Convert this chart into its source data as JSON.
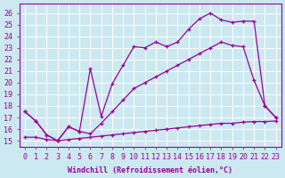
{
  "bg_color": "#cce8f0",
  "line_color": "#990099",
  "grid_color": "#ffffff",
  "xlabel": "Windchill (Refroidissement éolien,°C)",
  "ylabel_ticks": [
    15,
    16,
    17,
    18,
    19,
    20,
    21,
    22,
    23,
    24,
    25,
    26
  ],
  "xlim": [
    -0.5,
    23.5
  ],
  "ylim": [
    14.5,
    26.8
  ],
  "line1_x": [
    0,
    1,
    2,
    3,
    4,
    5,
    6,
    7,
    8,
    9,
    10,
    11,
    12,
    13,
    14,
    15,
    16,
    17,
    18,
    19,
    20,
    21,
    22,
    23
  ],
  "line1_y": [
    15.3,
    15.3,
    15.1,
    15.0,
    15.1,
    15.2,
    15.3,
    15.4,
    15.5,
    15.6,
    15.7,
    15.8,
    15.9,
    16.0,
    16.1,
    16.2,
    16.3,
    16.4,
    16.5,
    16.5,
    16.6,
    16.65,
    16.65,
    16.7
  ],
  "line2_x": [
    0,
    1,
    2,
    3,
    4,
    5,
    6,
    7,
    8,
    9,
    10,
    11,
    12,
    13,
    14,
    15,
    16,
    17,
    18,
    19,
    20,
    21,
    22,
    23
  ],
  "line2_y": [
    17.5,
    16.7,
    15.5,
    15.0,
    16.2,
    15.8,
    15.6,
    16.5,
    17.5,
    18.5,
    19.5,
    20.0,
    20.5,
    21.0,
    21.5,
    22.0,
    22.5,
    23.0,
    23.5,
    23.2,
    23.1,
    20.2,
    18.0,
    17.0
  ],
  "line3_x": [
    0,
    1,
    2,
    3,
    4,
    5,
    6,
    7,
    8,
    9,
    10,
    11,
    12,
    13,
    14,
    15,
    16,
    17,
    18,
    19,
    20,
    21,
    22,
    23
  ],
  "line3_y": [
    17.5,
    16.7,
    15.5,
    15.0,
    16.2,
    15.8,
    21.2,
    17.1,
    19.9,
    21.5,
    23.1,
    23.0,
    23.5,
    23.1,
    23.5,
    24.6,
    25.5,
    26.0,
    25.4,
    25.2,
    25.3,
    25.3,
    18.0,
    17.0
  ],
  "xtick_labels": [
    "0",
    "1",
    "2",
    "3",
    "4",
    "5",
    "6",
    "7",
    "8",
    "9",
    "10",
    "11",
    "12",
    "13",
    "14",
    "15",
    "16",
    "17",
    "18",
    "19",
    "20",
    "21",
    "22",
    "23"
  ],
  "font_size": 6.0
}
